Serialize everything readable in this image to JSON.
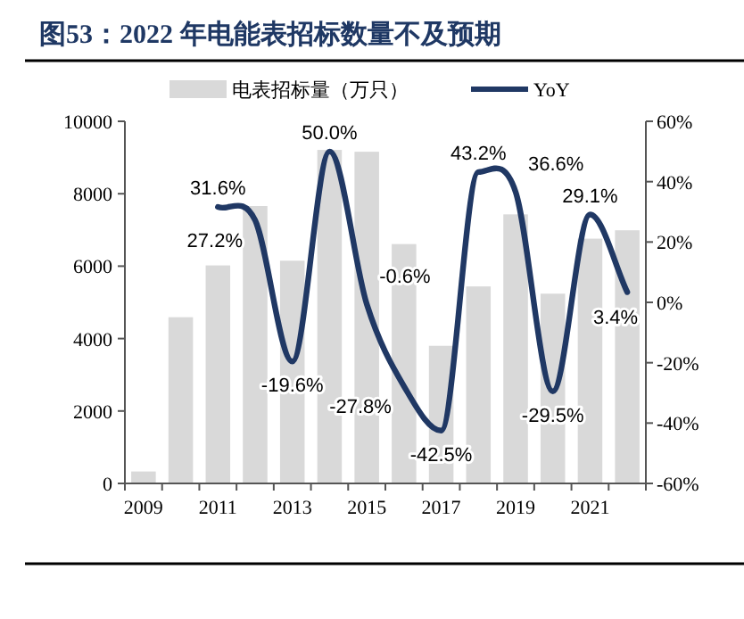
{
  "chart_data": {
    "type": "bar",
    "title": "图53：2022 年电能表招标数量不及预期",
    "categories": [
      "2009",
      null,
      "2011",
      null,
      "2013",
      null,
      "2015",
      null,
      "2017",
      null,
      "2019",
      null,
      "2021",
      null
    ],
    "series": [
      {
        "name": "电表招标量（万只）",
        "color": "#d9d9d9",
        "values": [
          330,
          4590,
          6020,
          7660,
          6150,
          9210,
          9160,
          6610,
          3800,
          5440,
          7430,
          5240,
          6760,
          6990
        ]
      },
      {
        "name": "YoY",
        "type": "line",
        "axis": "y2",
        "color": "#203864",
        "values": [
          null,
          null,
          31.6,
          27.2,
          -19.6,
          50.0,
          -0.6,
          -27.8,
          -42.5,
          43.2,
          36.6,
          -29.5,
          29.1,
          3.4
        ],
        "value_labels": [
          null,
          null,
          "31.6%",
          "27.2%",
          "-19.6%",
          "50.0%",
          "-0.6%",
          "-27.8%",
          "-42.5%",
          "43.2%",
          "36.6%",
          "-29.5%",
          "29.1%",
          "3.4%"
        ]
      }
    ],
    "ylim": [
      0,
      10000
    ],
    "yticks": [
      0,
      2000,
      4000,
      6000,
      8000,
      10000
    ],
    "y2lim": [
      -60,
      60
    ],
    "y2ticks": [
      {
        "value": -60,
        "label": "-60%"
      },
      {
        "value": -40,
        "label": "-40%"
      },
      {
        "value": -20,
        "label": "-20%"
      },
      {
        "value": 0,
        "label": "0%"
      },
      {
        "value": 20,
        "label": "20%"
      },
      {
        "value": 40,
        "label": "40%"
      },
      {
        "value": 60,
        "label": "60%"
      }
    ],
    "legend": "top",
    "grid": false
  }
}
